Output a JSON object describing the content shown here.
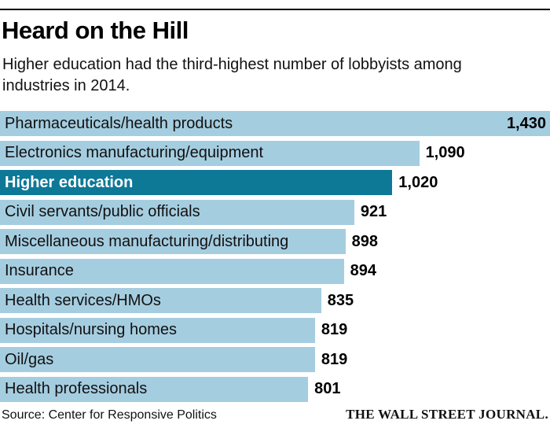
{
  "header": {
    "title": "Heard on the Hill",
    "subtitle": {
      "line1": "Higher education had the third-highest number of lobbyists among",
      "line2": "industries in 2014."
    }
  },
  "chart_data": {
    "type": "bar",
    "orientation": "horizontal",
    "title": "Heard on the Hill",
    "subtitle": "Higher education had the third-highest number of lobbyists among industries in 2014.",
    "categories": [
      "Pharmaceuticals/health products",
      "Electronics manufacturing/equipment",
      "Higher education",
      "Civil servants/public officials",
      "Miscellaneous manufacturing/distributing",
      "Insurance",
      "Health services/HMOs",
      "Hospitals/nursing homes",
      "Oil/gas",
      "Health professionals"
    ],
    "values": [
      1430,
      1090,
      1020,
      921,
      898,
      894,
      835,
      819,
      819,
      801
    ],
    "value_labels": [
      "1,430",
      "1,090",
      "1,020",
      "921",
      "898",
      "894",
      "835",
      "819",
      "819",
      "801"
    ],
    "highlight_index": 2,
    "xmax": 1430,
    "value_label_inside_first_bar": true,
    "grid": false,
    "legend": "none",
    "colors": {
      "bar": "#a5cde0",
      "highlight": "#0e7897",
      "value_text": "#000000",
      "label_text": "#111111",
      "highlight_label_text": "#ffffff"
    }
  },
  "footer": {
    "source": "Source: Center for Responsive Politics",
    "brand": "THE WALL STREET JOURNAL."
  }
}
